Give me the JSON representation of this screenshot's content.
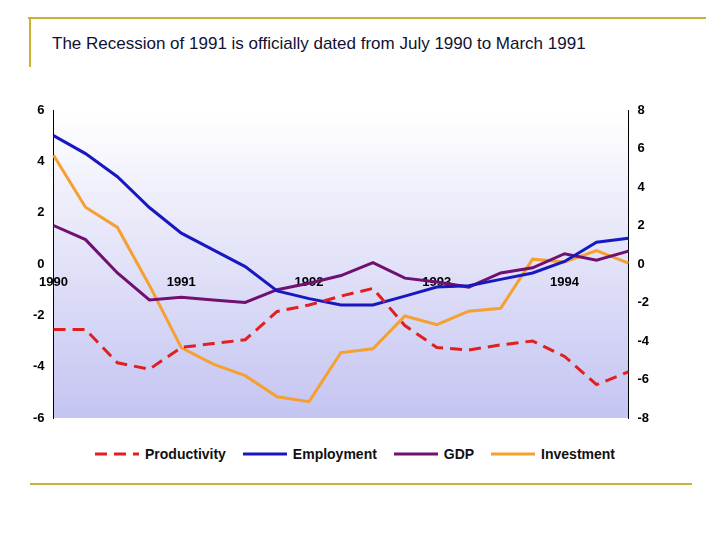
{
  "chart_data": {
    "type": "line",
    "title": "The Recession of 1991 is officially dated from July 1990 to March 1991",
    "categories": [
      "1990",
      null,
      null,
      null,
      "1991",
      null,
      null,
      null,
      "1992",
      null,
      null,
      null,
      "1993",
      null,
      null,
      null,
      "1994",
      null,
      null
    ],
    "series": [
      {
        "name": "Productivity",
        "color": "#e02020",
        "line_style": "dashed",
        "values": [
          -2.55,
          -2.55,
          -3.85,
          -4.1,
          -3.25,
          -3.1,
          -2.95,
          -1.85,
          -1.6,
          -1.25,
          -0.95,
          -2.4,
          -3.25,
          -3.35,
          -3.15,
          -3.0,
          -3.6,
          -4.7,
          -4.2
        ]
      },
      {
        "name": "Employment",
        "color": "#1818c0",
        "line_style": "solid",
        "values": [
          5.0,
          4.3,
          3.4,
          2.2,
          1.2,
          0.55,
          -0.1,
          -1.05,
          -1.35,
          -1.6,
          -1.6,
          -1.25,
          -0.9,
          -0.85,
          -0.6,
          -0.35,
          0.1,
          0.85,
          1.0
        ]
      },
      {
        "name": "GDP",
        "color": "#701070",
        "line_style": "solid",
        "values": [
          1.5,
          0.95,
          -0.35,
          -1.4,
          -1.3,
          -1.4,
          -1.5,
          -1.0,
          -0.75,
          -0.45,
          0.05,
          -0.55,
          -0.7,
          -0.9,
          -0.35,
          -0.15,
          0.4,
          0.15,
          0.5
        ]
      },
      {
        "name": "Investment",
        "color": "#f5a030",
        "line_style": "solid",
        "axis": "y2",
        "values": [
          5.65,
          2.95,
          1.9,
          -1.1,
          -4.35,
          -5.2,
          -5.8,
          -6.9,
          -7.15,
          -4.6,
          -4.4,
          -2.7,
          -3.15,
          -2.45,
          -2.3,
          0.25,
          0.1,
          0.7,
          0.05
        ]
      }
    ],
    "ylim": [
      -6,
      6
    ],
    "yticks": [
      -6,
      -4,
      -2,
      0,
      2,
      4,
      6
    ],
    "y2lim": [
      -8,
      8
    ],
    "y2ticks": [
      -8,
      -6,
      -4,
      -2,
      0,
      2,
      4,
      6,
      8
    ],
    "grid": false,
    "legend": "bottom"
  }
}
